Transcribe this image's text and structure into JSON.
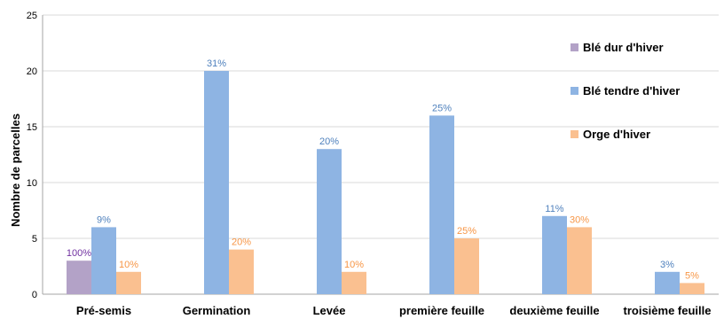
{
  "chart_data": {
    "type": "bar",
    "title": "",
    "xlabel": "",
    "ylabel": "Nombre de parcelles",
    "ylim": [
      0,
      25
    ],
    "yticks": [
      0,
      5,
      10,
      15,
      20,
      25
    ],
    "grid": true,
    "legend_position": "right",
    "categories": [
      "Pré-semis",
      "Germination",
      "Levée",
      "première feuille",
      "deuxième feuille",
      "troisième feuille"
    ],
    "series": [
      {
        "name": "Blé dur d'hiver",
        "color": "#b3a2c7",
        "label_color": "#7030a0",
        "values": [
          3,
          null,
          null,
          null,
          null,
          null
        ],
        "labels": [
          "100%",
          "",
          "",
          "",
          "",
          ""
        ]
      },
      {
        "name": "Blé tendre d'hiver",
        "color": "#8eb4e3",
        "label_color": "#4f81bd",
        "values": [
          6,
          20,
          13,
          16,
          7,
          2
        ],
        "labels": [
          "9%",
          "31%",
          "20%",
          "25%",
          "11%",
          "3%"
        ]
      },
      {
        "name": "Orge d'hiver",
        "color": "#fac090",
        "label_color": "#f79646",
        "values": [
          2,
          4,
          2,
          5,
          6,
          1
        ],
        "labels": [
          "10%",
          "20%",
          "10%",
          "25%",
          "30%",
          "5%"
        ]
      }
    ]
  }
}
